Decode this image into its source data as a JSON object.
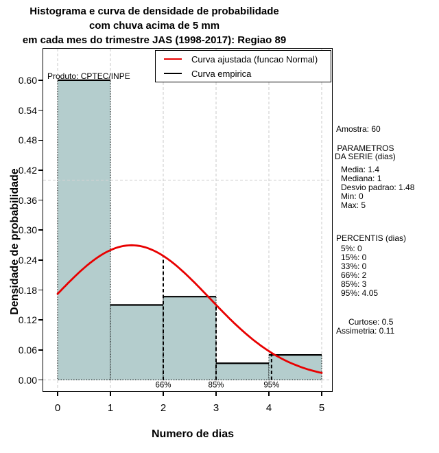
{
  "title": {
    "line1": "Histograma e curva de densidade de probabilidade",
    "line2": "com chuva acima de 5 mm",
    "line3": "em cada mes do trimestre JAS (1998-2017): Regiao 89"
  },
  "watermark": "Produto: CPTEC/INPE",
  "legend": {
    "items": [
      {
        "label": "Curva ajustada (funcao Normal)",
        "color": "#e80000"
      },
      {
        "label": "Curva empirica",
        "color": "#000000"
      }
    ]
  },
  "axes": {
    "x_label": "Numero de dias",
    "y_label": "Densidade de probabilidade",
    "x_tick_labels": [
      "0",
      "1",
      "2",
      "3",
      "4",
      "5"
    ],
    "x_tick_values": [
      0,
      1,
      2,
      3,
      4,
      5
    ],
    "y_tick_labels": [
      "0.00",
      "0.06",
      "0.12",
      "0.18",
      "0.24",
      "0.30",
      "0.36",
      "0.42",
      "0.48",
      "0.54",
      "0.60"
    ],
    "y_tick_values": [
      0,
      0.06,
      0.12,
      0.18,
      0.24,
      0.3,
      0.36,
      0.42,
      0.48,
      0.54,
      0.6
    ]
  },
  "stats_panel": {
    "amostra": "Amostra: 60",
    "parametros_header": [
      " PARAMETROS",
      "DA SERIE (dias)"
    ],
    "parametros_items": [
      "Media: 1.4",
      "Mediana: 1",
      "Desvio padrao: 1.48",
      "Min: 0",
      "Max: 5"
    ],
    "percentis_header": "PERCENTIS (dias)",
    "percentis_items": [
      "5%: 0",
      "15%: 0",
      "33%: 0",
      "66%: 2",
      "85%: 3",
      "95%: 4.05"
    ],
    "shape_items": [
      "Curtose: 0.5",
      "Assimetria: 0.11"
    ]
  },
  "chart_data": {
    "type": "bar",
    "subtype": "histogram-with-density-curves",
    "title": "Histograma e curva de densidade de probabilidade com chuva acima de 5 mm em cada mes do trimestre JAS (1998-2017): Regiao 89",
    "xlabel": "Numero de dias",
    "ylabel": "Densidade de probabilidade",
    "xlim": [
      0,
      5
    ],
    "ylim": [
      0,
      0.66
    ],
    "grid": true,
    "legend_position": "top-right",
    "sample_size": 60,
    "bin_edges": [
      0,
      1,
      2,
      3,
      4,
      5
    ],
    "bar_densities": [
      0.6,
      0.15,
      0.1667,
      0.0333,
      0.05
    ],
    "normal_fit": {
      "mean": 1.4,
      "sd": 1.48
    },
    "percentile_lines": [
      {
        "label": "66%",
        "x": 2
      },
      {
        "label": "85%",
        "x": 3
      },
      {
        "label": "95%",
        "x": 4.05
      }
    ],
    "x_gridlines": [
      0,
      1,
      2,
      3,
      4,
      5
    ],
    "y_gridlines": [
      0,
      0.4
    ],
    "colors": {
      "bar_fill": "#b4cdcd",
      "bar_border": "#000000",
      "fitted_curve": "#e80000",
      "empirical_curve": "#000000",
      "grid": "#d2d2d2"
    }
  }
}
